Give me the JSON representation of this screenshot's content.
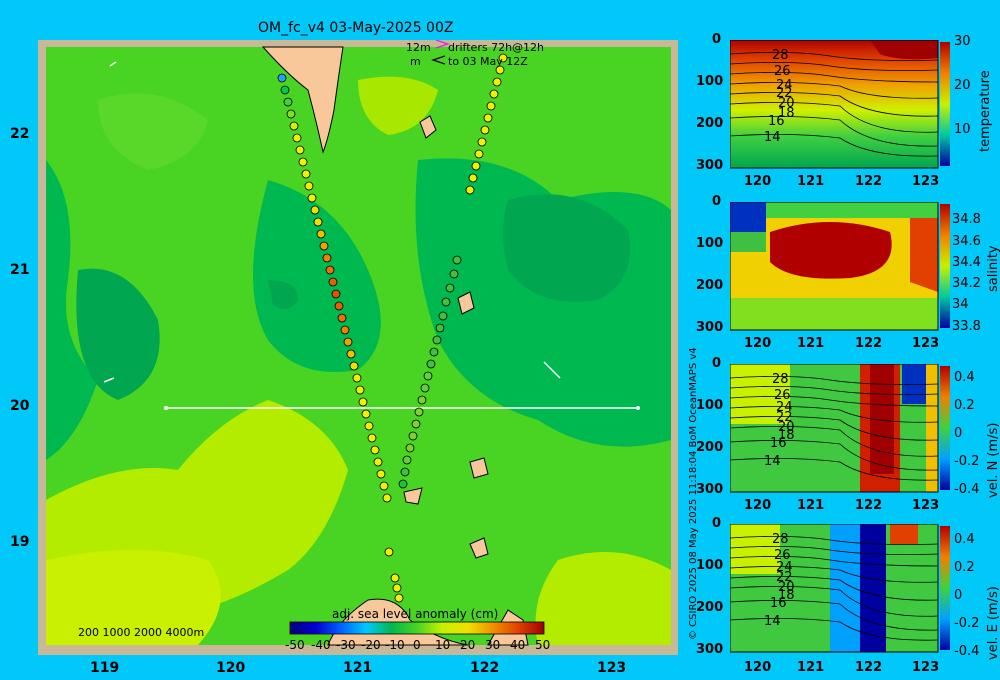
{
  "title": "OM_fc_v4  03-May-2025 00Z",
  "drifter_legend": {
    "line1_a": "12m",
    "line1_b": "drifters 72h@12h",
    "line2_a": "m",
    "line2_b": "to 03 May 12Z"
  },
  "map": {
    "x_ticks": [
      "119",
      "120",
      "121",
      "122",
      "123"
    ],
    "y_ticks": [
      "22",
      "21",
      "20",
      "19"
    ],
    "depth_legend": "200  1000  2000  4000m",
    "colorbar_title": "adj. sea level anomaly (cm)",
    "colorbar_ticks": [
      "-50",
      "-40",
      "-30",
      "-20",
      "-10",
      "0",
      "10",
      "20",
      "30",
      "40",
      "50"
    ]
  },
  "panels": [
    {
      "label": "temperature",
      "y_ticks": [
        "0",
        "100",
        "200",
        "300"
      ],
      "x_ticks": [
        "120",
        "121",
        "122",
        "123"
      ],
      "cb_ticks": [
        "30",
        "20",
        "10"
      ],
      "contours": [
        "28",
        "26",
        "24",
        "22",
        "20",
        "18",
        "16",
        "14"
      ]
    },
    {
      "label": "salinity",
      "y_ticks": [
        "0",
        "100",
        "200",
        "300"
      ],
      "x_ticks": [
        "120",
        "121",
        "122",
        "123"
      ],
      "cb_ticks": [
        "34.8",
        "34.6",
        "34.4",
        "34.2",
        "34",
        "33.8"
      ]
    },
    {
      "label": "vel. N (m/s)",
      "y_ticks": [
        "0",
        "100",
        "200",
        "300"
      ],
      "x_ticks": [
        "120",
        "121",
        "122",
        "123"
      ],
      "cb_ticks": [
        "0.4",
        "0.2",
        "0",
        "-0.2",
        "-0.4"
      ],
      "contours": [
        "28",
        "26",
        "24",
        "22",
        "20",
        "18",
        "16",
        "14"
      ]
    },
    {
      "label": "vel. E (m/s)",
      "y_ticks": [
        "0",
        "100",
        "200",
        "300"
      ],
      "x_ticks": [
        "120",
        "121",
        "122",
        "123"
      ],
      "cb_ticks": [
        "0.4",
        "0.2",
        "0",
        "-0.2",
        "-0.4"
      ],
      "contours": [
        "28",
        "26",
        "24",
        "22",
        "20",
        "18",
        "16",
        "14"
      ]
    }
  ],
  "credit": "© CSIRO 2025   08 May 2025 11:18:04 BoM OceanMAPS v4",
  "colors": {
    "background": "#00c8f8",
    "sla_low": "#00a650",
    "sla_mid": "#49d424",
    "sla_high": "#c8f000",
    "land": "#f8c89a"
  }
}
